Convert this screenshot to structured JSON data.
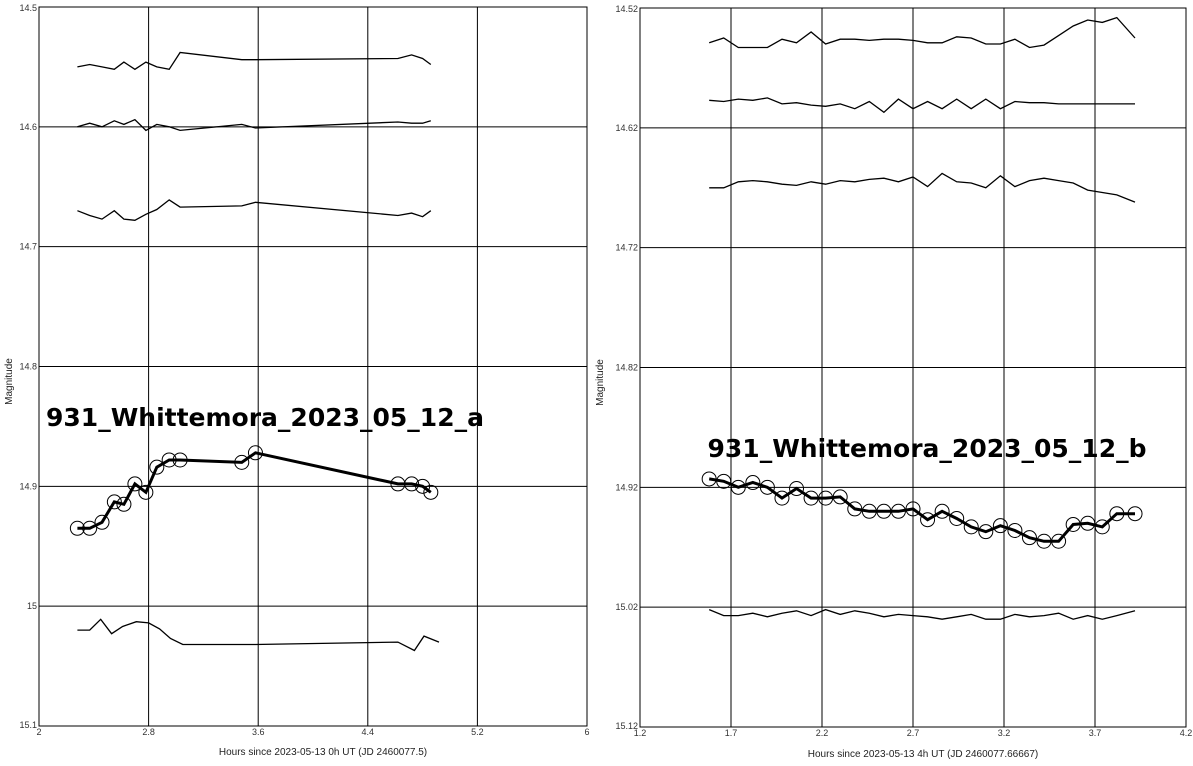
{
  "chart_data": [
    {
      "type": "line",
      "annotation": "931_Whittemora_2023_05_12_a",
      "xlabel": "Hours since 2023-05-13 0h UT (JD 2460077.5)",
      "ylabel": "Magnitude",
      "xlim": [
        2,
        6
      ],
      "ylim": [
        14.5,
        15.1
      ],
      "y_inverted": true,
      "grid": true,
      "xticks": [
        "2",
        "2.8",
        "3.6",
        "4.4",
        "5.2",
        "6"
      ],
      "yticks": [
        "14.5",
        "14.6",
        "14.7",
        "14.8",
        "14.9",
        "15",
        "15.1"
      ],
      "series": [
        {
          "x": [
            2.28,
            2.37,
            2.46,
            2.55,
            2.62,
            2.7,
            2.78,
            2.86,
            2.95,
            3.03,
            3.48,
            3.58,
            4.62,
            4.72,
            4.8,
            4.86
          ],
          "y": [
            14.55,
            14.548,
            14.55,
            14.552,
            14.546,
            14.552,
            14.546,
            14.55,
            14.552,
            14.538,
            14.544,
            14.544,
            14.543,
            14.54,
            14.543,
            14.548
          ]
        },
        {
          "x": [
            2.28,
            2.37,
            2.46,
            2.55,
            2.62,
            2.7,
            2.78,
            2.86,
            2.95,
            3.03,
            3.48,
            3.58,
            4.62,
            4.72,
            4.8,
            4.86
          ],
          "y": [
            14.6,
            14.597,
            14.6,
            14.595,
            14.598,
            14.594,
            14.603,
            14.598,
            14.6,
            14.603,
            14.598,
            14.601,
            14.596,
            14.597,
            14.597,
            14.595
          ]
        },
        {
          "x": [
            2.28,
            2.37,
            2.46,
            2.55,
            2.62,
            2.7,
            2.78,
            2.86,
            2.95,
            3.03,
            3.48,
            3.58,
            4.62,
            4.72,
            4.8,
            4.86
          ],
          "y": [
            14.67,
            14.674,
            14.677,
            14.67,
            14.677,
            14.678,
            14.673,
            14.669,
            14.661,
            14.667,
            14.666,
            14.663,
            14.674,
            14.672,
            14.675,
            14.67
          ]
        },
        {
          "x": [
            2.28,
            2.37,
            2.46,
            2.55,
            2.62,
            2.7,
            2.78,
            2.86,
            2.95,
            3.03,
            3.48,
            3.58,
            4.62,
            4.72,
            4.8,
            4.86
          ],
          "y": [
            14.935,
            14.935,
            14.93,
            14.913,
            14.915,
            14.898,
            14.905,
            14.884,
            14.878,
            14.878,
            14.88,
            14.872,
            14.898,
            14.898,
            14.9,
            14.905
          ],
          "markers": true,
          "highlight": true
        },
        {
          "x": [
            2.28,
            2.37,
            2.45,
            2.53,
            2.61,
            2.71,
            2.8,
            2.88,
            2.96,
            3.05,
            3.5,
            3.58,
            4.62,
            4.74,
            4.81,
            4.92
          ],
          "y": [
            15.02,
            15.02,
            15.011,
            15.023,
            15.017,
            15.013,
            15.014,
            15.019,
            15.027,
            15.032,
            15.032,
            15.032,
            15.03,
            15.037,
            15.025,
            15.03
          ]
        }
      ]
    },
    {
      "type": "line",
      "annotation": "931_Whittemora_2023_05_12_b",
      "xlabel": "Hours since 2023-05-13 4h UT (JD 2460077.66667)",
      "ylabel": "Magnitude",
      "xlim": [
        1.2,
        4.2
      ],
      "ylim": [
        14.52,
        15.12
      ],
      "y_inverted": true,
      "grid": true,
      "xticks": [
        "1.2",
        "1.7",
        "2.2",
        "2.7",
        "3.2",
        "3.7",
        "4.2"
      ],
      "yticks": [
        "14.52",
        "14.62",
        "14.72",
        "14.82",
        "14.92",
        "15.02",
        "15.12"
      ],
      "series": [
        {
          "x": [
            1.58,
            1.66,
            1.74,
            1.82,
            1.9,
            1.98,
            2.06,
            2.14,
            2.22,
            2.3,
            2.38,
            2.46,
            2.54,
            2.62,
            2.7,
            2.78,
            2.86,
            2.94,
            3.02,
            3.1,
            3.18,
            3.26,
            3.34,
            3.42,
            3.5,
            3.58,
            3.66,
            3.74,
            3.82,
            3.92
          ],
          "y": [
            14.549,
            14.545,
            14.553,
            14.553,
            14.553,
            14.546,
            14.549,
            14.54,
            14.55,
            14.546,
            14.546,
            14.547,
            14.546,
            14.546,
            14.547,
            14.549,
            14.549,
            14.544,
            14.545,
            14.55,
            14.55,
            14.546,
            14.553,
            14.551,
            14.543,
            14.535,
            14.53,
            14.532,
            14.528,
            14.545
          ]
        },
        {
          "x": [
            1.58,
            1.66,
            1.74,
            1.82,
            1.9,
            1.98,
            2.06,
            2.14,
            2.22,
            2.3,
            2.38,
            2.46,
            2.54,
            2.62,
            2.7,
            2.78,
            2.86,
            2.94,
            3.02,
            3.1,
            3.18,
            3.26,
            3.34,
            3.42,
            3.5,
            3.58,
            3.66,
            3.74,
            3.82,
            3.92
          ],
          "y": [
            14.597,
            14.598,
            14.596,
            14.597,
            14.595,
            14.6,
            14.599,
            14.601,
            14.602,
            14.6,
            14.604,
            14.598,
            14.607,
            14.596,
            14.604,
            14.598,
            14.604,
            14.596,
            14.604,
            14.596,
            14.604,
            14.598,
            14.599,
            14.599,
            14.6,
            14.6,
            14.6,
            14.6,
            14.6,
            14.6
          ]
        },
        {
          "x": [
            1.58,
            1.66,
            1.74,
            1.82,
            1.9,
            1.98,
            2.06,
            2.14,
            2.22,
            2.3,
            2.38,
            2.46,
            2.54,
            2.62,
            2.7,
            2.78,
            2.86,
            2.94,
            3.02,
            3.1,
            3.18,
            3.26,
            3.34,
            3.42,
            3.5,
            3.58,
            3.66,
            3.74,
            3.82,
            3.92
          ],
          "y": [
            14.67,
            14.67,
            14.665,
            14.664,
            14.665,
            14.667,
            14.668,
            14.665,
            14.667,
            14.664,
            14.665,
            14.663,
            14.662,
            14.665,
            14.661,
            14.669,
            14.658,
            14.665,
            14.666,
            14.67,
            14.66,
            14.669,
            14.664,
            14.662,
            14.664,
            14.666,
            14.672,
            14.674,
            14.676,
            14.682
          ]
        },
        {
          "x": [
            1.58,
            1.66,
            1.74,
            1.82,
            1.9,
            1.98,
            2.06,
            2.14,
            2.22,
            2.3,
            2.38,
            2.46,
            2.54,
            2.62,
            2.7,
            2.78,
            2.86,
            2.94,
            3.02,
            3.1,
            3.18,
            3.26,
            3.34,
            3.42,
            3.5,
            3.58,
            3.66,
            3.74,
            3.82,
            3.92
          ],
          "y": [
            14.913,
            14.915,
            14.92,
            14.916,
            14.92,
            14.929,
            14.921,
            14.929,
            14.929,
            14.928,
            14.938,
            14.94,
            14.94,
            14.94,
            14.938,
            14.947,
            14.94,
            14.946,
            14.953,
            14.957,
            14.952,
            14.956,
            14.962,
            14.965,
            14.965,
            14.951,
            14.95,
            14.953,
            14.942,
            14.942
          ],
          "markers": true,
          "highlight": true
        },
        {
          "x": [
            1.58,
            1.66,
            1.74,
            1.82,
            1.9,
            1.98,
            2.06,
            2.14,
            2.22,
            2.3,
            2.38,
            2.46,
            2.54,
            2.62,
            2.7,
            2.78,
            2.86,
            2.94,
            3.02,
            3.1,
            3.18,
            3.26,
            3.34,
            3.42,
            3.5,
            3.58,
            3.66,
            3.74,
            3.82,
            3.92
          ],
          "y": [
            15.022,
            15.027,
            15.027,
            15.025,
            15.028,
            15.025,
            15.023,
            15.027,
            15.022,
            15.026,
            15.023,
            15.025,
            15.028,
            15.026,
            15.027,
            15.028,
            15.03,
            15.028,
            15.026,
            15.03,
            15.03,
            15.026,
            15.028,
            15.027,
            15.025,
            15.03,
            15.027,
            15.03,
            15.027,
            15.023
          ]
        }
      ]
    }
  ]
}
